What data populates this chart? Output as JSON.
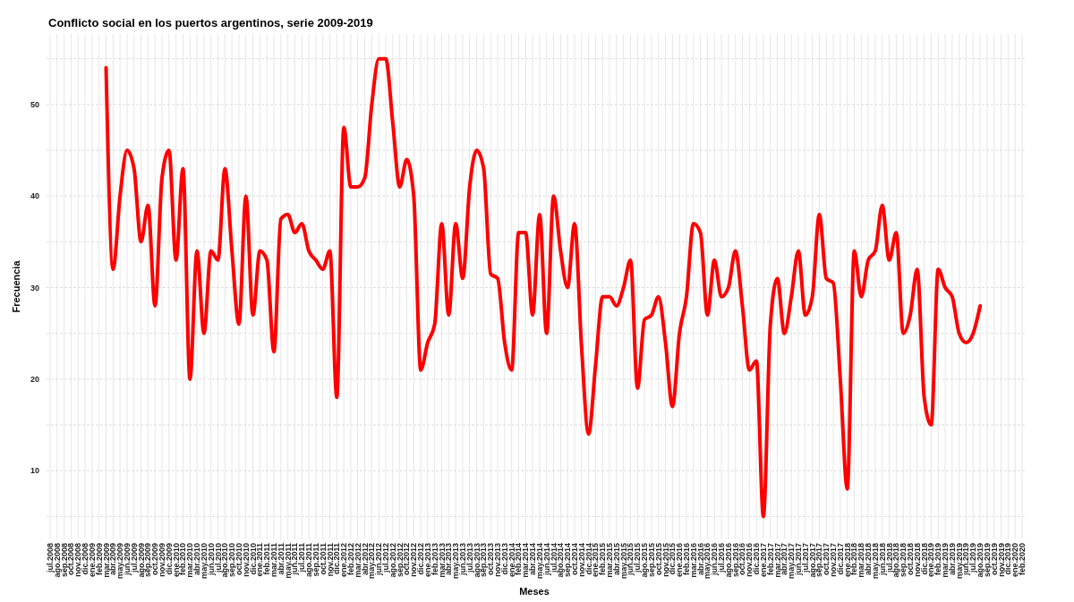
{
  "chart_data": {
    "type": "line",
    "title": "Conflicto social en los puertos argentinos, serie 2009-2019",
    "xlabel": "Meses",
    "ylabel": "Frecuencia",
    "categories": [
      "jul.2008",
      "ago.2008",
      "sep.2008",
      "oct.2008",
      "nov.2008",
      "dic.2008",
      "ene.2009",
      "feb.2009",
      "mar.2009",
      "abr.2009",
      "may.2009",
      "jun.2009",
      "jul.2009",
      "ago.2009",
      "sep.2009",
      "oct.2009",
      "nov.2009",
      "dic.2009",
      "ene.2010",
      "feb.2010",
      "mar.2010",
      "abr.2010",
      "may.2010",
      "jun.2010",
      "jul.2010",
      "ago.2010",
      "sep.2010",
      "oct.2010",
      "nov.2010",
      "dic.2010",
      "ene.2011",
      "feb.2011",
      "mar.2011",
      "abr.2011",
      "may.2011",
      "jun.2011",
      "jul.2011",
      "ago.2011",
      "sep.2011",
      "oct.2011",
      "nov.2011",
      "dic.2011",
      "ene.2012",
      "feb.2012",
      "mar.2012",
      "abr.2012",
      "may.2012",
      "jun.2012",
      "jul.2012",
      "ago.2012",
      "sep.2012",
      "oct.2012",
      "nov.2012",
      "dic.2012",
      "ene.2013",
      "feb.2013",
      "mar.2013",
      "abr.2013",
      "may.2013",
      "jun.2013",
      "jul.2013",
      "ago.2013",
      "sep.2013",
      "oct.2013",
      "nov.2013",
      "dic.2013",
      "ene.2014",
      "feb.2014",
      "mar.2014",
      "abr.2014",
      "may.2014",
      "jun.2014",
      "jul.2014",
      "ago.2014",
      "sep.2014",
      "oct.2014",
      "nov.2014",
      "dic.2014",
      "ene.2015",
      "feb.2015",
      "mar.2015",
      "abr.2015",
      "may.2015",
      "jun.2015",
      "jul.2015",
      "ago.2015",
      "sep.2015",
      "oct.2015",
      "nov.2015",
      "dic.2015",
      "ene.2016",
      "feb.2016",
      "mar.2016",
      "abr.2016",
      "may.2016",
      "jun.2016",
      "jul.2016",
      "ago.2016",
      "sep.2016",
      "oct.2016",
      "nov.2016",
      "dic.2016",
      "ene.2017",
      "feb.2017",
      "mar.2017",
      "abr.2017",
      "may.2017",
      "jun.2017",
      "jul.2017",
      "ago.2017",
      "sep.2017",
      "oct.2017",
      "nov.2017",
      "dic.2017",
      "ene.2018",
      "feb.2018",
      "mar.2018",
      "abr.2018",
      "may.2018",
      "jun.2018",
      "jul.2018",
      "ago.2018",
      "sep.2018",
      "oct.2018",
      "nov.2018",
      "dic.2018",
      "ene.2019",
      "feb.2019",
      "mar.2019",
      "abr.2019",
      "may.2019",
      "jun.2019",
      "jul.2019",
      "ago.2019",
      "sep.2019",
      "oct.2019",
      "nov.2019",
      "dic.2019",
      "ene.2020",
      "feb.2020"
    ],
    "series": [
      {
        "color": "#ff0000",
        "values": [
          null,
          null,
          null,
          null,
          null,
          null,
          null,
          null,
          54,
          32,
          40,
          45,
          43,
          35,
          39,
          28,
          42,
          45,
          33,
          43,
          20,
          34,
          25,
          34,
          33,
          43,
          34,
          26,
          40,
          27,
          34,
          33,
          23,
          37.5,
          38,
          36,
          37,
          34,
          33,
          32,
          34,
          18,
          47.5,
          41,
          41,
          42,
          50,
          55,
          55,
          48,
          41,
          44,
          40,
          21,
          24,
          26,
          37,
          27,
          37,
          31,
          41,
          45,
          43,
          31.5,
          31,
          24,
          21,
          36,
          36,
          27,
          38,
          25,
          40,
          34,
          30,
          37,
          23.5,
          14,
          21.5,
          29,
          29,
          28,
          30,
          33,
          19,
          26.5,
          27,
          29,
          24,
          17,
          25,
          29,
          37,
          36,
          27,
          33,
          29,
          30,
          34,
          28,
          21,
          22,
          5,
          26,
          31,
          25,
          29,
          34,
          27,
          29,
          38,
          31,
          30.5,
          20,
          8,
          34,
          29,
          33,
          34,
          39,
          33,
          36,
          25,
          27,
          32,
          18,
          15,
          32,
          30,
          29,
          25,
          24,
          25,
          28,
          null,
          null,
          null,
          null,
          null,
          null
        ]
      }
    ],
    "ylim": [
      2.5,
      57.7
    ],
    "yticks": [
      {
        "value": 5,
        "label": null
      },
      10,
      {
        "value": 15,
        "label": null
      },
      20,
      {
        "value": 25,
        "label": null
      },
      30,
      {
        "value": 35,
        "label": null
      },
      40,
      {
        "value": 45,
        "label": null
      },
      50,
      {
        "value": 55,
        "label": null
      }
    ],
    "grid": true,
    "marker": "none",
    "line_style": "solid"
  }
}
